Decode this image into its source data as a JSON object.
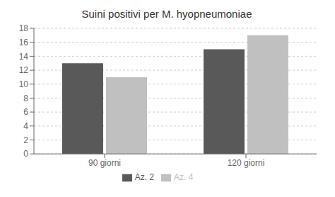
{
  "chart_data": {
    "type": "bar",
    "title": "Suini positivi per M. hyopneumoniae",
    "categories": [
      "90 giorni",
      "120 giorni"
    ],
    "series": [
      {
        "name": "Az. 2",
        "color": "#595959",
        "values": [
          13,
          15
        ]
      },
      {
        "name": "Az. 4",
        "color": "#c0c0c0",
        "values": [
          11,
          17
        ]
      }
    ],
    "ylim": [
      0,
      18
    ],
    "yticks": [
      0,
      2,
      4,
      6,
      8,
      10,
      12,
      14,
      16,
      18
    ],
    "grid": true,
    "legend": "bottom"
  }
}
